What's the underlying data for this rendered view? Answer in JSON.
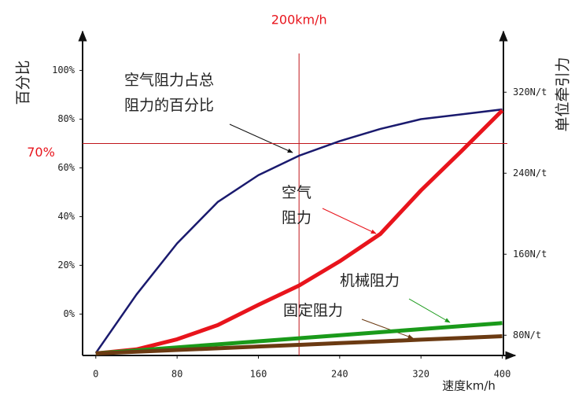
{
  "chart_data": {
    "type": "line",
    "y_label": "百分比",
    "y2_label": "单位牵引力",
    "x_label": "速度km/h",
    "x": [
      0,
      40,
      80,
      120,
      160,
      200,
      240,
      280,
      320,
      360,
      400
    ],
    "xlim": [
      -13,
      405
    ],
    "xticks": [
      0,
      80,
      160,
      240,
      320,
      400
    ],
    "ylim": [
      -17,
      116
    ],
    "yticks": [
      {
        "value": 0,
        "label": "0%"
      },
      {
        "value": 20,
        "label": "20%"
      },
      {
        "value": 40,
        "label": "40%"
      },
      {
        "value": 60,
        "label": "60%"
      },
      {
        "value": 80,
        "label": "80%"
      },
      {
        "value": 100,
        "label": "100%"
      }
    ],
    "y2lim": [
      60,
      380
    ],
    "y2ticks": [
      {
        "value": 80,
        "label": "80N/t"
      },
      {
        "value": 160,
        "label": "160N/t"
      },
      {
        "value": 240,
        "label": "240N/t"
      },
      {
        "value": 320,
        "label": "320N/t"
      }
    ],
    "series": [
      {
        "name": "空气阻力占总\n阻力的百分比",
        "color": "#1a1a6e",
        "axis": "y",
        "values": [
          -16,
          8,
          29,
          46,
          57,
          65,
          71,
          76,
          80,
          82,
          84
        ]
      },
      {
        "name": "空气\n阻力",
        "color": "#e8141c",
        "axis": "y2",
        "values": [
          62,
          66,
          76,
          90,
          110,
          129,
          153,
          180,
          223,
          262,
          302
        ]
      },
      {
        "name": "机械阻力",
        "color": "#1a9a1a",
        "axis": "y2",
        "values": [
          62,
          65,
          68,
          71,
          74,
          77,
          80,
          83,
          86,
          89,
          92
        ]
      },
      {
        "name": "固定阻力",
        "color": "#6b3a12",
        "axis": "y2",
        "values": [
          62,
          63.7,
          65.4,
          67.1,
          68.8,
          70.5,
          72.2,
          73.9,
          75.6,
          77.3,
          79
        ]
      }
    ],
    "reference_lines": [
      {
        "axis": "x",
        "value": 200,
        "label": "200km/h"
      },
      {
        "axis": "y",
        "value": 70,
        "label": "70%"
      }
    ]
  }
}
